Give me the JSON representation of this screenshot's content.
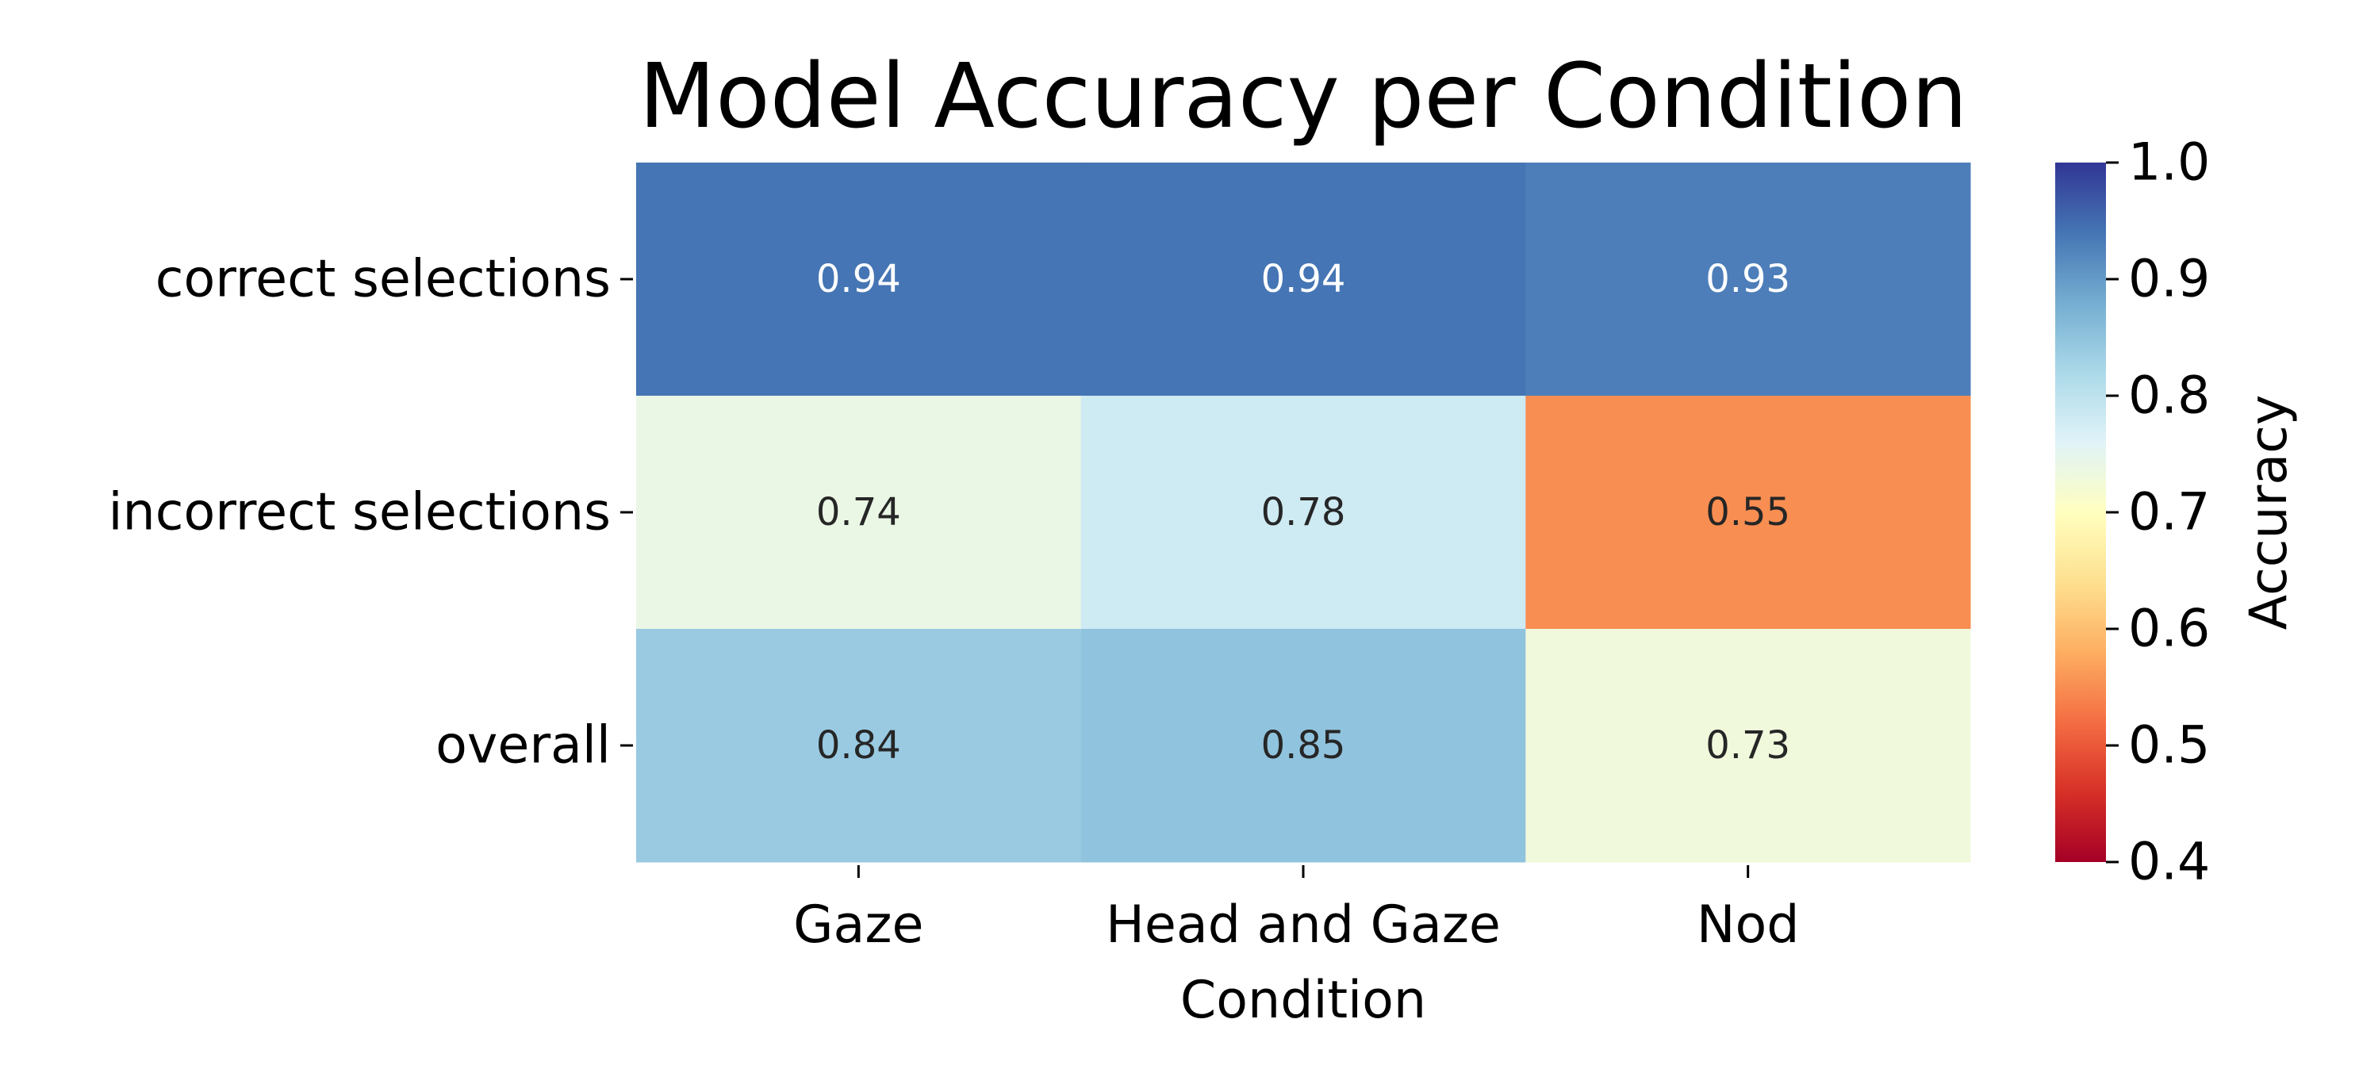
{
  "chart_data": {
    "type": "heatmap",
    "title": "Model Accuracy per Condition",
    "xlabel": "Condition",
    "ylabel": "",
    "x_categories": [
      "Gaze",
      "Head and Gaze",
      "Nod"
    ],
    "y_categories": [
      "correct selections",
      "incorrect selections",
      "overall"
    ],
    "values": [
      [
        0.94,
        0.94,
        0.93
      ],
      [
        0.74,
        0.78,
        0.55
      ],
      [
        0.84,
        0.85,
        0.73
      ]
    ],
    "value_labels": [
      [
        "0.94",
        "0.94",
        "0.93"
      ],
      [
        "0.74",
        "0.78",
        "0.55"
      ],
      [
        "0.84",
        "0.85",
        "0.73"
      ]
    ],
    "colormap": "RdYlBu",
    "colorbar": {
      "label": "Accuracy",
      "range": [
        0.4,
        1.0
      ],
      "ticks": [
        "0.4",
        "0.5",
        "0.6",
        "0.7",
        "0.8",
        "0.9",
        "1.0"
      ],
      "position": "right"
    },
    "grid": false,
    "colormap_stops": [
      "#a50026",
      "#d73027",
      "#f46d43",
      "#fdae61",
      "#fee090",
      "#ffffbf",
      "#e0f3f8",
      "#abd9e9",
      "#74add1",
      "#4575b4",
      "#313695"
    ],
    "text_colors": {
      "dark": "#262626",
      "light": "#ffffff"
    }
  }
}
